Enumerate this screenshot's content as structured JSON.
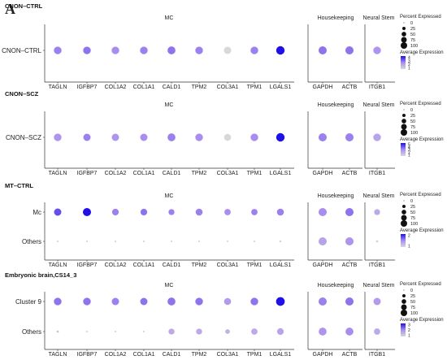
{
  "figure": {
    "panel_letter": "A"
  },
  "colors": {
    "low": "#d8d8d8",
    "mid": "#a98cf0",
    "high": "#1f10e8",
    "axis": "#333333"
  },
  "group_headers": [
    "MC",
    "Housekeeping",
    "Neural Stem"
  ],
  "genes": {
    "MC": [
      "TAGLN",
      "IGFBP7",
      "COL1A2",
      "COL1A1",
      "CALD1",
      "TPM2",
      "COL3A1",
      "TPM1",
      "LGALS1"
    ],
    "Housekeeping": [
      "GAPDH",
      "ACTB"
    ],
    "Neural Stem": [
      "ITGB1"
    ]
  },
  "legend": {
    "percent_title": "Percent Expressed",
    "percent_levels": [
      "0",
      "25",
      "50",
      "75",
      "100"
    ],
    "avg_title": "Average Expression"
  },
  "chart_data": [
    {
      "type": "dotplot",
      "title": "CNON–CTRL",
      "rows": [
        "CNON–CTRL"
      ],
      "color_ticks": [
        "4",
        "3",
        "2",
        "1"
      ],
      "pct": [
        [
          65,
          65,
          65,
          65,
          70,
          65,
          60,
          65,
          80,
          75,
          75,
          65
        ]
      ],
      "avg": [
        [
          0.55,
          0.6,
          0.5,
          0.55,
          0.6,
          0.55,
          0.0,
          0.55,
          1.0,
          0.6,
          0.6,
          0.45
        ]
      ]
    },
    {
      "type": "dotplot",
      "title": "CNON–SCZ",
      "rows": [
        "CNON–SCZ"
      ],
      "color_ticks": [
        "5",
        "4",
        "3",
        "2",
        "1"
      ],
      "pct": [
        [
          65,
          60,
          60,
          60,
          70,
          65,
          55,
          65,
          80,
          75,
          75,
          65
        ]
      ],
      "avg": [
        [
          0.45,
          0.55,
          0.45,
          0.5,
          0.55,
          0.5,
          0.0,
          0.5,
          1.0,
          0.55,
          0.55,
          0.35
        ]
      ]
    },
    {
      "type": "dotplot",
      "title": "MT–CTRL",
      "rows": [
        "Mc",
        "Others"
      ],
      "color_ticks": [
        "2",
        "1"
      ],
      "pct": [
        [
          60,
          75,
          50,
          50,
          40,
          55,
          45,
          45,
          55,
          75,
          75,
          40
        ],
        [
          3,
          3,
          3,
          3,
          3,
          3,
          3,
          3,
          4,
          75,
          75,
          5
        ]
      ],
      "avg": [
        [
          0.75,
          1.0,
          0.55,
          0.6,
          0.55,
          0.55,
          0.5,
          0.55,
          0.55,
          0.5,
          0.6,
          0.3
        ],
        [
          0.1,
          0.1,
          0.1,
          0.1,
          0.1,
          0.1,
          0.1,
          0.1,
          0.1,
          0.35,
          0.45,
          0.1
        ]
      ]
    },
    {
      "type": "dotplot",
      "title": "Embryonic brain,CS14_3",
      "rows": [
        "Cluster 9",
        "Others"
      ],
      "color_ticks": [
        "3",
        "2",
        "1"
      ],
      "pct": [
        [
          65,
          65,
          60,
          60,
          70,
          65,
          55,
          65,
          85,
          75,
          75,
          60
        ],
        [
          5,
          3,
          3,
          3,
          40,
          40,
          25,
          45,
          50,
          70,
          70,
          45
        ]
      ],
      "avg": [
        [
          0.6,
          0.6,
          0.55,
          0.6,
          0.6,
          0.6,
          0.4,
          0.6,
          1.0,
          0.55,
          0.6,
          0.4
        ],
        [
          0.2,
          0.1,
          0.1,
          0.1,
          0.3,
          0.3,
          0.25,
          0.3,
          0.35,
          0.45,
          0.5,
          0.3
        ]
      ]
    }
  ]
}
